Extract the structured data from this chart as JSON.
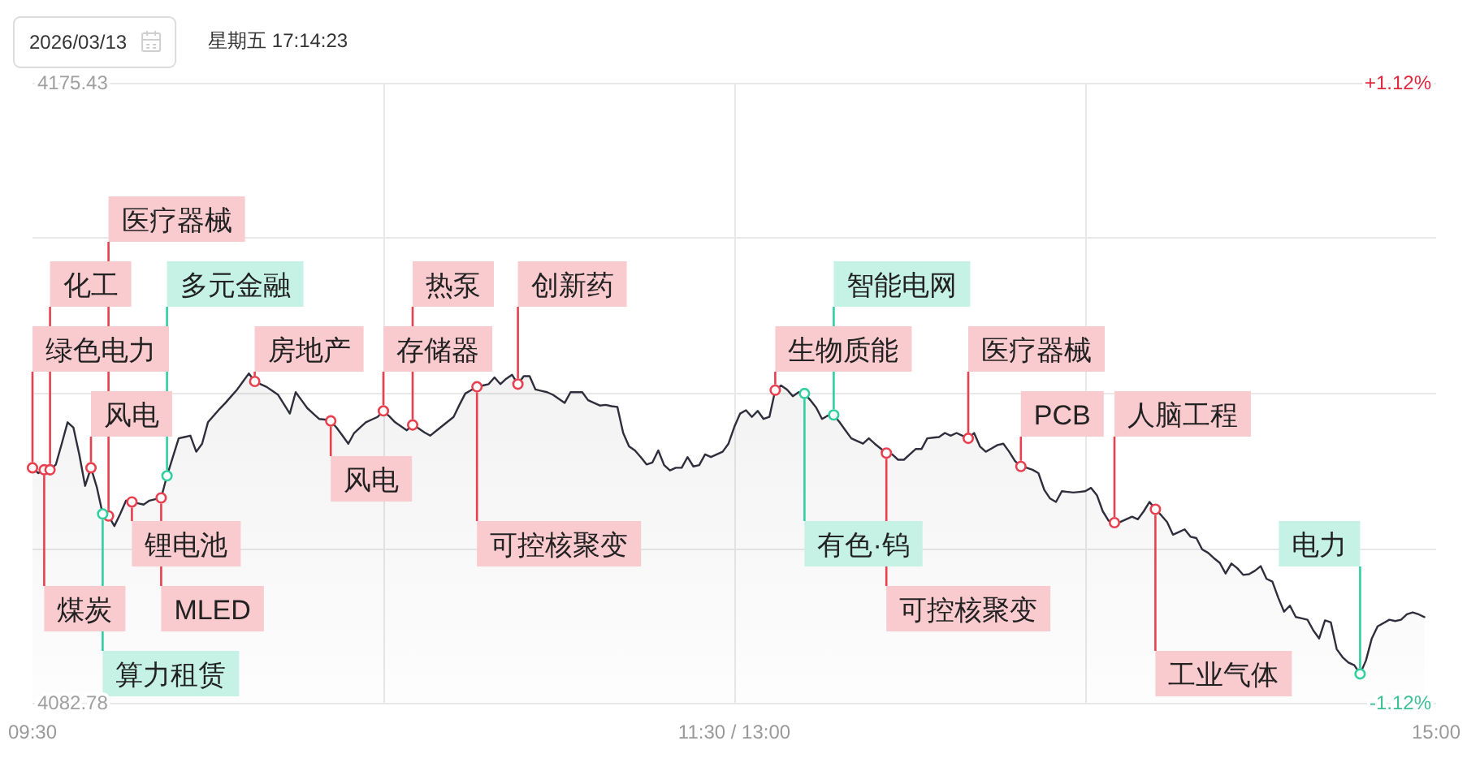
{
  "chart_data": {
    "type": "area",
    "title": "2026/03/13",
    "subtitle": "星期五 17:14:23",
    "categories": [
      "09:30",
      null,
      null,
      null,
      null,
      null,
      null,
      null,
      null,
      null,
      null,
      null,
      null,
      null,
      null,
      null,
      null,
      null,
      null,
      null,
      null,
      null,
      null,
      null,
      null,
      null,
      null,
      null,
      null,
      null,
      null,
      null,
      null,
      null,
      null,
      null,
      null,
      null,
      null,
      null,
      null,
      null,
      null,
      null,
      null,
      null,
      null,
      null,
      null,
      null,
      null,
      null,
      null,
      null,
      null,
      null,
      null,
      null,
      null,
      null,
      null,
      null,
      null,
      null,
      null,
      null,
      null,
      null,
      null,
      null,
      null,
      null,
      null,
      null,
      null,
      null,
      null,
      null,
      null,
      null,
      null,
      null,
      null,
      null,
      null,
      null,
      null,
      null,
      null,
      null,
      null,
      null,
      null,
      null,
      null,
      null,
      null,
      null,
      null,
      null,
      null,
      null,
      null,
      null,
      null,
      null,
      null,
      null,
      null,
      null,
      null,
      null,
      null,
      null,
      null,
      null,
      null,
      null,
      null,
      null,
      "11:30 / 13:00",
      null,
      null,
      null,
      null,
      null,
      null,
      null,
      null,
      null,
      null,
      null,
      null,
      null,
      null,
      null,
      null,
      null,
      null,
      null,
      null,
      null,
      null,
      null,
      null,
      null,
      null,
      null,
      null,
      null,
      null,
      null,
      null,
      null,
      null,
      null,
      null,
      null,
      null,
      null,
      null,
      null,
      null,
      null,
      null,
      null,
      null,
      null,
      null,
      null,
      null,
      null,
      null,
      null,
      null,
      null,
      null,
      null,
      null,
      null,
      null,
      null,
      null,
      null,
      null,
      null,
      null,
      null,
      null,
      null,
      null,
      null,
      null,
      null,
      null,
      null,
      null,
      null,
      null,
      null,
      null,
      null,
      null,
      null,
      null,
      null,
      null,
      null,
      null,
      null,
      null,
      null,
      null,
      null,
      null,
      null,
      null,
      null,
      null,
      null,
      null,
      null,
      null,
      null,
      null,
      null,
      null,
      null,
      null,
      null,
      null,
      null,
      null,
      null,
      null,
      null,
      null,
      null,
      null,
      null,
      "15:00"
    ],
    "ylim": [
      4082.78,
      4175.43
    ],
    "yticks": [
      4082.78,
      {
        "value": 4105.94,
        "label": null
      },
      {
        "value": 4129.11,
        "label": null
      },
      {
        "value": 4152.27,
        "label": null
      },
      4175.43
    ],
    "y2lim": [
      -1.12,
      1.12
    ],
    "y2ticks": [
      {
        "value": -1.12,
        "label": "-1.12%"
      },
      {
        "value": 1.12,
        "label": "+1.12%"
      }
    ],
    "grid": true,
    "series": [
      {
        "color": "#2e2e3c",
        "values": [
          4117.9,
          4117.1,
          4117.6,
          4117.6,
          4118.4,
          4121.5,
          4124.7,
          4123.9,
          4119.9,
          4115.2,
          4117.9,
          4115.0,
          4111.0,
          4110.7,
          4109.2,
          4111.0,
          4113.0,
          4112.8,
          4112.6,
          4112.4,
          4113.0,
          4113.2,
          4113.4,
          4116.7,
          4119.5,
          4122.3,
          4122.5,
          4122.7,
          4120.3,
          4121.5,
          4124.7,
          4125.7,
          4126.7,
          4127.6,
          4128.6,
          4129.6,
          4130.8,
          4132.0,
          4130.8,
          4130.4,
          4130.0,
          4129.4,
          4128.8,
          4127.4,
          4126.0,
          4129.2,
          4128.0,
          4126.8,
          4126.0,
          4125.2,
          4125.1,
          4124.9,
          4123.9,
          4122.7,
          4121.5,
          4123.1,
          4123.9,
          4124.7,
          4125.1,
          4125.5,
          4126.4,
          4125.6,
          4124.7,
          4124.1,
          4123.5,
          4124.3,
          4123.8,
          4123.2,
          4122.7,
          4123.4,
          4124.1,
          4124.8,
          4125.5,
          4127.3,
          4129.0,
          4129.5,
          4130.0,
          4130.2,
          4130.4,
          4131.4,
          4130.4,
          4131.2,
          4131.8,
          4130.4,
          4131.6,
          4131.6,
          4129.6,
          4129.4,
          4129.2,
          4128.8,
          4128.2,
          4127.6,
          4129.2,
          4129.2,
          4129.2,
          4128.0,
          4127.6,
          4127.2,
          4127.3,
          4127.1,
          4127.0,
          4123.1,
          4121.1,
          4120.5,
          4119.5,
          4118.4,
          4118.7,
          4120.5,
          4118.3,
          4117.5,
          4117.9,
          4117.9,
          4119.5,
          4118.1,
          4118.3,
          4119.9,
          4119.5,
          4119.9,
          4120.3,
          4121.5,
          4124.0,
          4126.0,
          4126.5,
          4125.5,
          4126.4,
          4125.2,
          4125.5,
          4129.5,
          4130.2,
          4129.6,
          4128.6,
          4129.2,
          4129.0,
          4128.0,
          4126.9,
          4125.2,
          4125.7,
          4125.8,
          4124.7,
          4123.5,
          4122.3,
          4121.9,
          4121.5,
          4122.3,
          4121.5,
          4120.8,
          4120.1,
          4119.9,
          4119.1,
          4119.1,
          4119.9,
          4120.7,
          4120.7,
          4122.3,
          4122.4,
          4122.5,
          4123.1,
          4122.7,
          4123.1,
          4122.7,
          4122.3,
          4123.1,
          4121.1,
          4120.3,
          4120.8,
          4121.3,
          4121.5,
          4120.3,
          4118.9,
          4118.1,
          4117.9,
          4117.6,
          4117.1,
          4114.6,
          4113.3,
          4112.8,
          4114.4,
          4114.3,
          4114.2,
          4114.3,
          4114.4,
          4114.9,
          4113.8,
          4111.4,
          4110.0,
          4109.7,
          4109.8,
          4110.2,
          4110.6,
          4110.2,
          4111.4,
          4112.8,
          4111.7,
          4110.8,
          4109.8,
          4107.9,
          4108.3,
          4108.7,
          4107.6,
          4107.4,
          4105.7,
          4105.2,
          4104.4,
          4103.7,
          4102.1,
          4103.6,
          4102.9,
          4101.9,
          4102.0,
          4102.5,
          4103.2,
          4101.3,
          4100.9,
          4098.5,
          4096.4,
          4097.3,
          4095.6,
          4095.4,
          4095.2,
          4093.6,
          4092.4,
          4095.1,
          4094.8,
          4090.8,
          4089.6,
          4088.8,
          4088.4,
          4087.1,
          4089.1,
          4092.4,
          4094.2,
          4094.7,
          4095.2,
          4095.0,
          4095.2,
          4096.0,
          4096.3,
          4096.0,
          4095.6,
          null,
          null
        ]
      },
      {
        "type": "scatter",
        "color": "#e8404f",
        "marker": "circle",
        "values": [
          4117.9,
          null,
          4117.6,
          4117.6,
          null,
          null,
          null,
          null,
          null,
          null,
          4117.9,
          null,
          null,
          4110.7,
          null,
          null,
          null,
          4112.8,
          null,
          null,
          null,
          null,
          4113.4,
          null,
          null,
          null,
          null,
          null,
          null,
          null,
          null,
          null,
          null,
          null,
          null,
          null,
          null,
          null,
          4130.8,
          null,
          null,
          null,
          null,
          null,
          null,
          null,
          null,
          null,
          null,
          null,
          null,
          4124.9,
          null,
          null,
          null,
          null,
          null,
          null,
          null,
          null,
          4126.4,
          null,
          null,
          null,
          null,
          4124.3,
          null,
          null,
          null,
          null,
          null,
          null,
          null,
          null,
          null,
          null,
          4130.0,
          null,
          null,
          null,
          null,
          null,
          null,
          4130.4,
          null,
          null,
          null,
          null,
          null,
          null,
          null,
          null,
          null,
          null,
          null,
          null,
          null,
          null,
          null,
          null,
          null,
          null,
          null,
          null,
          null,
          null,
          null,
          null,
          null,
          null,
          null,
          null,
          null,
          null,
          null,
          null,
          null,
          null,
          null,
          null,
          null,
          null,
          null,
          null,
          null,
          null,
          null,
          4129.5,
          null,
          null,
          null,
          null,
          null,
          null,
          null,
          null,
          null,
          null,
          null,
          null,
          null,
          null,
          null,
          null,
          null,
          null,
          4120.1,
          null,
          null,
          null,
          null,
          null,
          null,
          null,
          null,
          null,
          null,
          null,
          null,
          null,
          4122.3,
          null,
          null,
          null,
          null,
          null,
          null,
          null,
          null,
          4118.1,
          null,
          null,
          null,
          null,
          null,
          null,
          null,
          null,
          null,
          null,
          null,
          null,
          null,
          null,
          null,
          4109.7,
          null,
          null,
          null,
          null,
          null,
          null,
          4111.7,
          null,
          null,
          null,
          null,
          null,
          null,
          null,
          null,
          null,
          null,
          null,
          null,
          null,
          null,
          null,
          null,
          null,
          null,
          null,
          null,
          null,
          null,
          null,
          null,
          null,
          null,
          null,
          null,
          null,
          null,
          null,
          null,
          null,
          null,
          null,
          null,
          null,
          null,
          null,
          null,
          null,
          null,
          null,
          null,
          null,
          null,
          null,
          null
        ],
        "value_labels": [
          "绿色电力",
          null,
          "煤炭",
          "化工",
          null,
          null,
          null,
          null,
          null,
          null,
          "风电",
          null,
          null,
          "医疗器械",
          null,
          null,
          null,
          "锂电池",
          null,
          null,
          null,
          null,
          "MLED",
          null,
          null,
          null,
          null,
          null,
          null,
          null,
          null,
          null,
          null,
          null,
          null,
          null,
          null,
          null,
          "房地产",
          null,
          null,
          null,
          null,
          null,
          null,
          null,
          null,
          null,
          null,
          null,
          null,
          "风电",
          null,
          null,
          null,
          null,
          null,
          null,
          null,
          null,
          "存储器",
          null,
          null,
          null,
          null,
          "热泵",
          null,
          null,
          null,
          null,
          null,
          null,
          null,
          null,
          null,
          null,
          "可控核聚变",
          null,
          null,
          null,
          null,
          null,
          null,
          "创新药",
          null,
          null,
          null,
          null,
          null,
          null,
          null,
          null,
          null,
          null,
          null,
          null,
          null,
          null,
          null,
          null,
          null,
          null,
          null,
          null,
          null,
          null,
          null,
          null,
          null,
          null,
          null,
          null,
          null,
          null,
          null,
          null,
          null,
          null,
          null,
          null,
          null,
          null,
          null,
          null,
          null,
          null,
          null,
          "生物质能",
          null,
          null,
          null,
          null,
          null,
          null,
          null,
          null,
          null,
          null,
          null,
          null,
          null,
          null,
          null,
          null,
          null,
          null,
          "可控核聚变",
          null,
          null,
          null,
          null,
          null,
          null,
          null,
          null,
          null,
          null,
          null,
          null,
          null,
          "医疗器械",
          null,
          null,
          null,
          null,
          null,
          null,
          null,
          null,
          "PCB",
          null,
          null,
          null,
          null,
          null,
          null,
          null,
          null,
          null,
          null,
          null,
          null,
          null,
          null,
          null,
          "人脑工程",
          null,
          null,
          null,
          null,
          null,
          null,
          "工业气体",
          null,
          null,
          null,
          null,
          null,
          null,
          null,
          null,
          null,
          null,
          null,
          null,
          null,
          null,
          null,
          null,
          null,
          null,
          null,
          null,
          null,
          null,
          null,
          null,
          null,
          null,
          null,
          null,
          null,
          null,
          null,
          null,
          null,
          null,
          null,
          null,
          null,
          null,
          null,
          null,
          null,
          null,
          null,
          null,
          null,
          null,
          null,
          null
        ]
      },
      {
        "type": "scatter",
        "color": "#2fcf9f",
        "marker": "circle",
        "values": [
          null,
          null,
          null,
          null,
          null,
          null,
          null,
          null,
          null,
          null,
          null,
          null,
          4111.0,
          null,
          null,
          null,
          null,
          null,
          null,
          null,
          null,
          null,
          null,
          4116.7,
          null,
          null,
          null,
          null,
          null,
          null,
          null,
          null,
          null,
          null,
          null,
          null,
          null,
          null,
          null,
          null,
          null,
          null,
          null,
          null,
          null,
          null,
          null,
          null,
          null,
          null,
          null,
          null,
          null,
          null,
          null,
          null,
          null,
          null,
          null,
          null,
          null,
          null,
          null,
          null,
          null,
          null,
          null,
          null,
          null,
          null,
          null,
          null,
          null,
          null,
          null,
          null,
          null,
          null,
          null,
          null,
          null,
          null,
          null,
          null,
          null,
          null,
          null,
          null,
          null,
          null,
          null,
          null,
          null,
          null,
          null,
          null,
          null,
          null,
          null,
          null,
          null,
          null,
          null,
          null,
          null,
          null,
          null,
          null,
          null,
          null,
          null,
          null,
          null,
          null,
          null,
          null,
          null,
          null,
          null,
          null,
          null,
          null,
          null,
          null,
          null,
          null,
          null,
          null,
          null,
          null,
          null,
          null,
          4129.0,
          null,
          null,
          null,
          null,
          4125.8,
          null,
          null,
          null,
          null,
          null,
          null,
          null,
          null,
          null,
          null,
          null,
          null,
          null,
          null,
          null,
          null,
          null,
          null,
          null,
          null,
          null,
          null,
          null,
          null,
          null,
          null,
          null,
          null,
          null,
          null,
          null,
          null,
          null,
          null,
          null,
          null,
          null,
          null,
          null,
          null,
          null,
          null,
          null,
          null,
          null,
          null,
          null,
          null,
          null,
          null,
          null,
          null,
          null,
          null,
          null,
          null,
          null,
          null,
          null,
          null,
          null,
          null,
          null,
          null,
          null,
          null,
          null,
          null,
          null,
          null,
          null,
          null,
          null,
          null,
          null,
          null,
          null,
          null,
          null,
          null,
          null,
          null,
          null,
          null,
          null,
          null,
          null,
          null,
          null,
          4087.1,
          null,
          null,
          null,
          null,
          null,
          null,
          null,
          null,
          null,
          null,
          null,
          null,
          null
        ],
        "value_labels": [
          null,
          null,
          null,
          null,
          null,
          null,
          null,
          null,
          null,
          null,
          null,
          null,
          "算力租赁",
          null,
          null,
          null,
          null,
          null,
          null,
          null,
          null,
          null,
          null,
          "多元金融",
          null,
          null,
          null,
          null,
          null,
          null,
          null,
          null,
          null,
          null,
          null,
          null,
          null,
          null,
          null,
          null,
          null,
          null,
          null,
          null,
          null,
          null,
          null,
          null,
          null,
          null,
          null,
          null,
          null,
          null,
          null,
          null,
          null,
          null,
          null,
          null,
          null,
          null,
          null,
          null,
          null,
          null,
          null,
          null,
          null,
          null,
          null,
          null,
          null,
          null,
          null,
          null,
          null,
          null,
          null,
          null,
          null,
          null,
          null,
          null,
          null,
          null,
          null,
          null,
          null,
          null,
          null,
          null,
          null,
          null,
          null,
          null,
          null,
          null,
          null,
          null,
          null,
          null,
          null,
          null,
          null,
          null,
          null,
          null,
          null,
          null,
          null,
          null,
          null,
          null,
          null,
          null,
          null,
          null,
          null,
          null,
          null,
          null,
          null,
          null,
          null,
          null,
          null,
          null,
          null,
          null,
          null,
          null,
          "有色·钨",
          null,
          null,
          null,
          null,
          "智能电网",
          null,
          null,
          null,
          null,
          null,
          null,
          null,
          null,
          null,
          null,
          null,
          null,
          null,
          null,
          null,
          null,
          null,
          null,
          null,
          null,
          null,
          null,
          null,
          null,
          null,
          null,
          null,
          null,
          null,
          null,
          null,
          null,
          null,
          null,
          null,
          null,
          null,
          null,
          null,
          null,
          null,
          null,
          null,
          null,
          null,
          null,
          null,
          null,
          null,
          null,
          null,
          null,
          null,
          null,
          null,
          null,
          null,
          null,
          null,
          null,
          null,
          null,
          null,
          null,
          null,
          null,
          null,
          null,
          null,
          null,
          null,
          null,
          null,
          null,
          null,
          null,
          null,
          null,
          null,
          null,
          null,
          null,
          null,
          null,
          null,
          null,
          null,
          null,
          null,
          "电力",
          null,
          null,
          null,
          null,
          null,
          null,
          null,
          null,
          null,
          null,
          null,
          null,
          null
        ]
      }
    ]
  }
}
